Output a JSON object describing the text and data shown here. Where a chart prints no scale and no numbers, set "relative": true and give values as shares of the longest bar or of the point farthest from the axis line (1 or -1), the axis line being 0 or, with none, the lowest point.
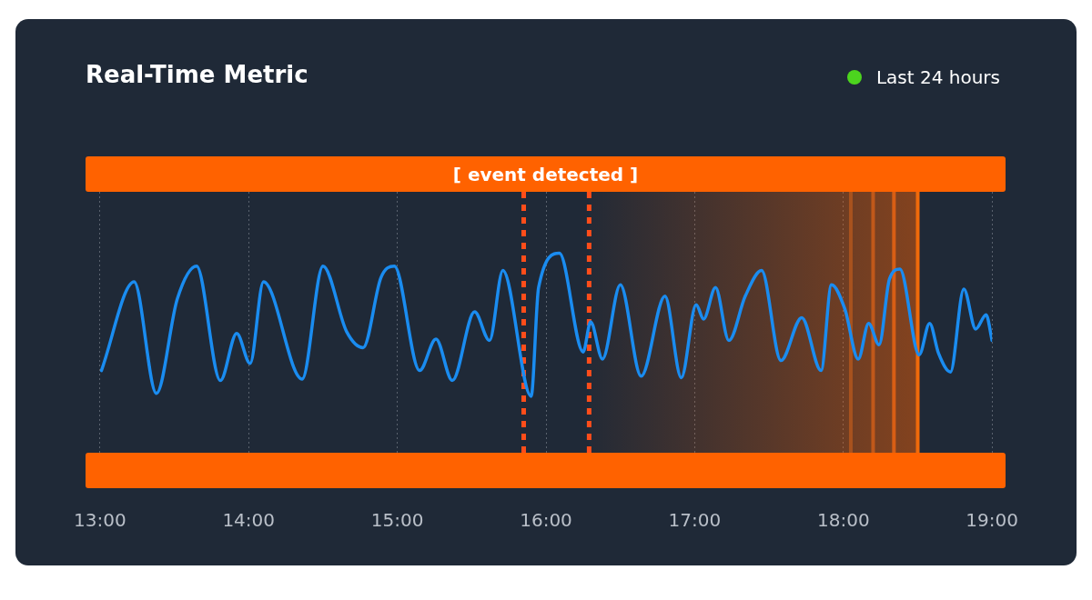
{
  "chart_data": {
    "type": "line",
    "title": "Real-Time Metric",
    "subtitle": "Last 24 hours",
    "relative": true,
    "grid": "x",
    "legend": false,
    "marker": "none",
    "line_style": "solid",
    "xlim": [
      13,
      19
    ],
    "xticks": [
      {
        "value": 13,
        "label": "13:00"
      },
      {
        "value": 14,
        "label": "14:00"
      },
      {
        "value": 15,
        "label": "15:00"
      },
      {
        "value": 16,
        "label": "16:00"
      },
      {
        "value": 17,
        "label": "17:00"
      },
      {
        "value": 18,
        "label": "18:00"
      },
      {
        "value": 19,
        "label": "19:00"
      }
    ],
    "x": [
      13.01,
      13.23,
      13.38,
      13.52,
      13.65,
      13.81,
      13.92,
      14.01,
      14.1,
      14.36,
      14.5,
      14.66,
      14.77,
      14.89,
      14.98,
      15.15,
      15.26,
      15.37,
      15.52,
      15.62,
      15.71,
      15.9,
      15.95,
      16.09,
      16.25,
      16.3,
      16.38,
      16.5,
      16.64,
      16.8,
      16.91,
      17.01,
      17.06,
      17.14,
      17.23,
      17.34,
      17.45,
      17.58,
      17.72,
      17.85,
      17.92,
      18.01,
      18.1,
      18.17,
      18.24,
      18.31,
      18.38,
      18.51,
      18.58,
      18.64,
      18.72,
      18.81,
      18.89,
      18.96,
      19.0
    ],
    "series": [
      {
        "color": "#1a8cf0",
        "values": [
          0.18,
          0.8,
          0.02,
          0.68,
          0.91,
          0.11,
          0.44,
          0.23,
          0.8,
          0.12,
          0.91,
          0.45,
          0.34,
          0.83,
          0.91,
          0.18,
          0.4,
          0.11,
          0.59,
          0.39,
          0.88,
          0,
          0.76,
          1,
          0.31,
          0.52,
          0.26,
          0.78,
          0.14,
          0.7,
          0.13,
          0.64,
          0.54,
          0.76,
          0.39,
          0.7,
          0.88,
          0.25,
          0.55,
          0.18,
          0.78,
          0.61,
          0.26,
          0.51,
          0.36,
          0.82,
          0.89,
          0.29,
          0.51,
          0.3,
          0.17,
          0.75,
          0.47,
          0.57,
          0.39
        ]
      }
    ],
    "bands": [
      {
        "axis": "x",
        "from": 16.29,
        "to": 18.51,
        "color": "#ff6200"
      }
    ],
    "ref_lines": [
      {
        "axis": "x",
        "value": 15.85,
        "color": "#ff4d1a",
        "line_style": "dotted"
      },
      {
        "axis": "x",
        "value": 16.29,
        "color": "#ff4d1a",
        "line_style": "dotted"
      },
      {
        "axis": "x",
        "value": 18.05,
        "color": "#a8521e",
        "line_style": "solid"
      },
      {
        "axis": "x",
        "value": 18.2,
        "color": "#c0581a",
        "line_style": "solid"
      },
      {
        "axis": "x",
        "value": 18.34,
        "color": "#d85e14",
        "line_style": "solid"
      },
      {
        "axis": "x",
        "value": 18.5,
        "color": "#f06a0a",
        "line_style": "solid"
      }
    ],
    "annotations": [
      "[ event detected ]"
    ]
  }
}
